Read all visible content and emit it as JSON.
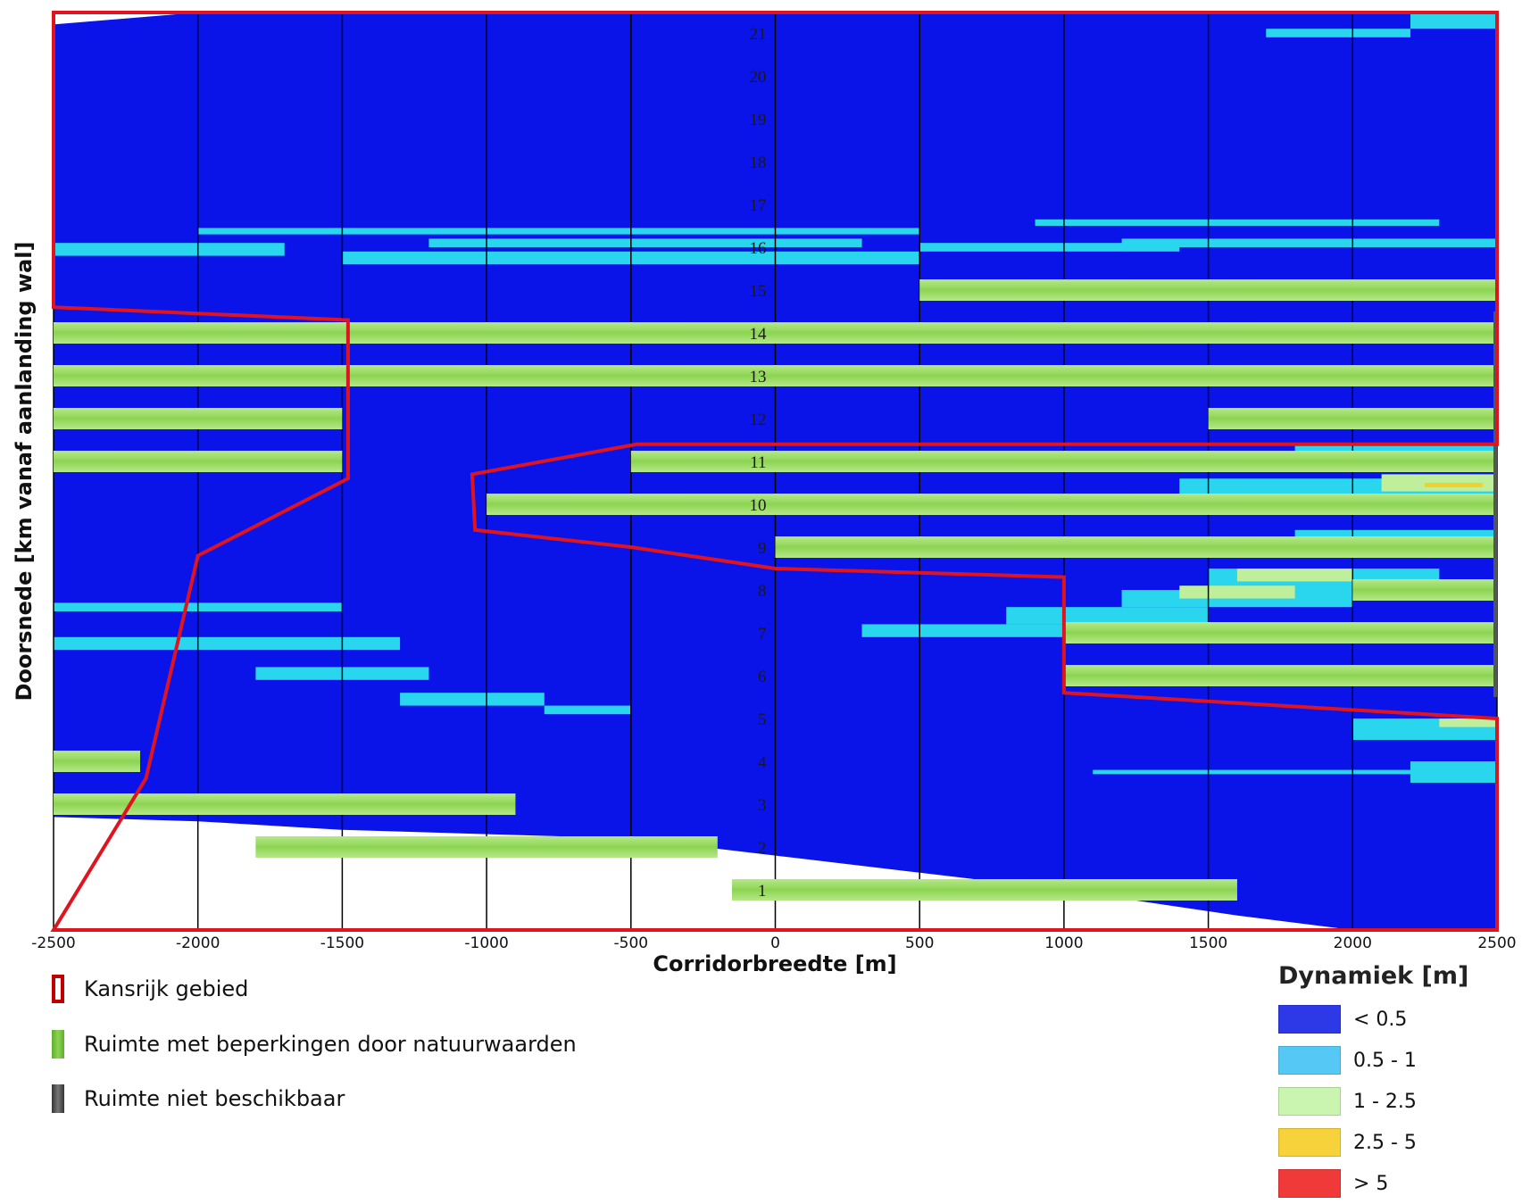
{
  "chart_data": {
    "type": "heatmap",
    "xlabel": "Corridorbreedte [m]",
    "ylabel": "Doorsnede [km vanaf aanlanding wal]",
    "xlim": [
      -2500,
      2500
    ],
    "ylim": [
      0,
      21.5
    ],
    "x_ticks": [
      -2500,
      -2000,
      -1500,
      -1000,
      -500,
      0,
      500,
      1000,
      1500,
      2000,
      2500
    ],
    "y_ticks": [
      1,
      2,
      3,
      4,
      5,
      6,
      7,
      8,
      9,
      10,
      11,
      12,
      13,
      14,
      15,
      16,
      17,
      18,
      19,
      20,
      21
    ],
    "grid": "vertical",
    "background_class": "< 0.5",
    "survey_coverage": {
      "bottom_boundary_km": [
        {
          "x": -2500,
          "y": 2.7
        },
        {
          "x": -2000,
          "y": 2.6
        },
        {
          "x": -1500,
          "y": 2.4
        },
        {
          "x": -1000,
          "y": 2.3
        },
        {
          "x": -500,
          "y": 2.2
        },
        {
          "x": 0,
          "y": 1.8
        },
        {
          "x": 500,
          "y": 1.4
        },
        {
          "x": 1000,
          "y": 1.0
        },
        {
          "x": 1600,
          "y": 0.4
        },
        {
          "x": 2000,
          "y": 0.0
        },
        {
          "x": 2500,
          "y": 0.0
        }
      ],
      "top_boundary_km": [
        {
          "x": -2500,
          "y": 21.2
        },
        {
          "x": -2000,
          "y": 21.6
        },
        {
          "x": -1500,
          "y": 21.7
        },
        {
          "x": 2500,
          "y": 21.7
        }
      ]
    },
    "dynamics_bands": [
      {
        "class": "0.5 - 1",
        "x0": -2500,
        "x1": -1700,
        "y0": 15.8,
        "y1": 16.1
      },
      {
        "class": "0.5 - 1",
        "x0": -1500,
        "x1": 500,
        "y0": 15.6,
        "y1": 15.9
      },
      {
        "class": "0.5 - 1",
        "x0": -1200,
        "x1": 300,
        "y0": 16.0,
        "y1": 16.2
      },
      {
        "class": "0.5 - 1",
        "x0": 500,
        "x1": 1400,
        "y0": 15.9,
        "y1": 16.1
      },
      {
        "class": "0.5 - 1",
        "x0": 1200,
        "x1": 2500,
        "y0": 16.0,
        "y1": 16.2
      },
      {
        "class": "0.5 - 1",
        "x0": -2000,
        "x1": 500,
        "y0": 16.3,
        "y1": 16.45
      },
      {
        "class": "0.5 - 1",
        "x0": 900,
        "x1": 2300,
        "y0": 16.5,
        "y1": 16.65
      },
      {
        "class": "0.5 - 1",
        "x0": 2200,
        "x1": 2500,
        "y0": 21.1,
        "y1": 21.5
      },
      {
        "class": "0.5 - 1",
        "x0": 1700,
        "x1": 2200,
        "y0": 20.9,
        "y1": 21.1
      },
      {
        "class": "0.5 - 1",
        "x0": -2500,
        "x1": -1500,
        "y0": 7.5,
        "y1": 7.7
      },
      {
        "class": "0.5 - 1",
        "x0": -2500,
        "x1": -1300,
        "y0": 6.6,
        "y1": 6.9
      },
      {
        "class": "0.5 - 1",
        "x0": -1800,
        "x1": -1200,
        "y0": 5.9,
        "y1": 6.2
      },
      {
        "class": "0.5 - 1",
        "x0": -1300,
        "x1": -800,
        "y0": 5.3,
        "y1": 5.6
      },
      {
        "class": "0.5 - 1",
        "x0": -800,
        "x1": -500,
        "y0": 5.1,
        "y1": 5.3
      },
      {
        "class": "0.5 - 1",
        "x0": 300,
        "x1": 1000,
        "y0": 6.9,
        "y1": 7.2
      },
      {
        "class": "0.5 - 1",
        "x0": 800,
        "x1": 1500,
        "y0": 7.2,
        "y1": 7.6
      },
      {
        "class": "0.5 - 1",
        "x0": 1200,
        "x1": 2000,
        "y0": 7.6,
        "y1": 8.0
      },
      {
        "class": "0.5 - 1",
        "x0": 1500,
        "x1": 2300,
        "y0": 8.0,
        "y1": 8.5
      },
      {
        "class": "0.5 - 1",
        "x0": 1800,
        "x1": 2500,
        "y0": 9.0,
        "y1": 9.4
      },
      {
        "class": "0.5 - 1",
        "x0": 1400,
        "x1": 2500,
        "y0": 10.2,
        "y1": 10.6
      },
      {
        "class": "0.5 - 1",
        "x0": 1800,
        "x1": 2500,
        "y0": 11.0,
        "y1": 11.4
      },
      {
        "class": "0.5 - 1",
        "x0": 2000,
        "x1": 2500,
        "y0": 4.5,
        "y1": 5.0
      },
      {
        "class": "0.5 - 1",
        "x0": 1100,
        "x1": 2300,
        "y0": 3.7,
        "y1": 3.8
      },
      {
        "class": "0.5 - 1",
        "x0": 2200,
        "x1": 2500,
        "y0": 3.5,
        "y1": 4.0
      },
      {
        "class": "1 - 2.5",
        "x0": 1600,
        "x1": 2000,
        "y0": 8.2,
        "y1": 8.5
      },
      {
        "class": "1 - 2.5",
        "x0": 1400,
        "x1": 1800,
        "y0": 7.8,
        "y1": 8.1
      },
      {
        "class": "1 - 2.5",
        "x0": 2100,
        "x1": 2500,
        "y0": 10.3,
        "y1": 10.7
      },
      {
        "class": "1 - 2.5",
        "x0": 2300,
        "x1": 2500,
        "y0": 4.8,
        "y1": 5.0
      },
      {
        "class": "2.5 - 5",
        "x0": 2250,
        "x1": 2450,
        "y0": 10.4,
        "y1": 10.5
      }
    ],
    "restricted_zones": [
      {
        "km": 1,
        "x0": -150,
        "x1": 1600
      },
      {
        "km": 2,
        "x0": -1800,
        "x1": -200
      },
      {
        "km": 3,
        "x0": -2500,
        "x1": -900
      },
      {
        "km": 4,
        "x0": -2500,
        "x1": -2200
      },
      {
        "km": 6,
        "x0": 1000,
        "x1": 2500
      },
      {
        "km": 7,
        "x0": 1000,
        "x1": 2500
      },
      {
        "km": 8,
        "x0": 2000,
        "x1": 2500
      },
      {
        "km": 9,
        "x0": 0,
        "x1": 2500
      },
      {
        "km": 10,
        "x0": -1000,
        "x1": 2500
      },
      {
        "km": 11,
        "x0": -500,
        "x1": 2500
      },
      {
        "km": 11,
        "x0": -2500,
        "x1": -1500
      },
      {
        "km": 12,
        "x0": -2500,
        "x1": -1500
      },
      {
        "km": 12,
        "x0": 1500,
        "x1": 2500
      },
      {
        "km": 13,
        "x0": -2500,
        "x1": 2500
      },
      {
        "km": 14,
        "x0": -2500,
        "x1": 2500
      },
      {
        "km": 15,
        "x0": 500,
        "x1": 2500
      }
    ],
    "kansrijk_gebied_polygon": [
      {
        "x": -2500,
        "y": 0.0
      },
      {
        "x": -2180,
        "y": 3.6
      },
      {
        "x": -2000,
        "y": 8.8
      },
      {
        "x": -1480,
        "y": 10.6
      },
      {
        "x": -1480,
        "y": 14.3
      },
      {
        "x": -2500,
        "y": 14.6
      },
      {
        "x": -2500,
        "y": 21.7
      },
      {
        "x": 2500,
        "y": 21.7
      },
      {
        "x": 2500,
        "y": 11.4
      },
      {
        "x": -480,
        "y": 11.4
      },
      {
        "x": -1050,
        "y": 10.7
      },
      {
        "x": -1040,
        "y": 9.4
      },
      {
        "x": -500,
        "y": 9.0
      },
      {
        "x": 0,
        "y": 8.5
      },
      {
        "x": 1000,
        "y": 8.3
      },
      {
        "x": 1000,
        "y": 5.6
      },
      {
        "x": 1500,
        "y": 5.4
      },
      {
        "x": 2500,
        "y": 5.0
      },
      {
        "x": 2500,
        "y": 0.0
      }
    ],
    "colors": {
      "lt_0_5": "#0b14e8",
      "c_0_5_1": "#2ad6ee",
      "c_1_2_5": "#bfef9a",
      "c_2_5_5": "#f3cf2a",
      "gt_5": "#ee3333",
      "restricted": "#8cd452",
      "polygon": "#e0141e",
      "unavailable": "#555555"
    }
  },
  "legend_left": [
    {
      "label": "Kansrijk gebied",
      "icon": "red-outline-rect"
    },
    {
      "label": "Ruimte met beperkingen door natuurwaarden",
      "icon": "green-bar"
    },
    {
      "label": "Ruimte niet beschikbaar",
      "icon": "grey-bar"
    }
  ],
  "legend_right": {
    "title": "Dynamiek [m]",
    "items": [
      {
        "label": "< 0.5",
        "color": "#2d38e6"
      },
      {
        "label": "0.5 - 1",
        "color": "#55c8f5"
      },
      {
        "label": "1 - 2.5",
        "color": "#c9f5b0"
      },
      {
        "label": "2.5 - 5",
        "color": "#f7d23a"
      },
      {
        "label": "> 5",
        "color": "#f03a3a"
      }
    ]
  }
}
